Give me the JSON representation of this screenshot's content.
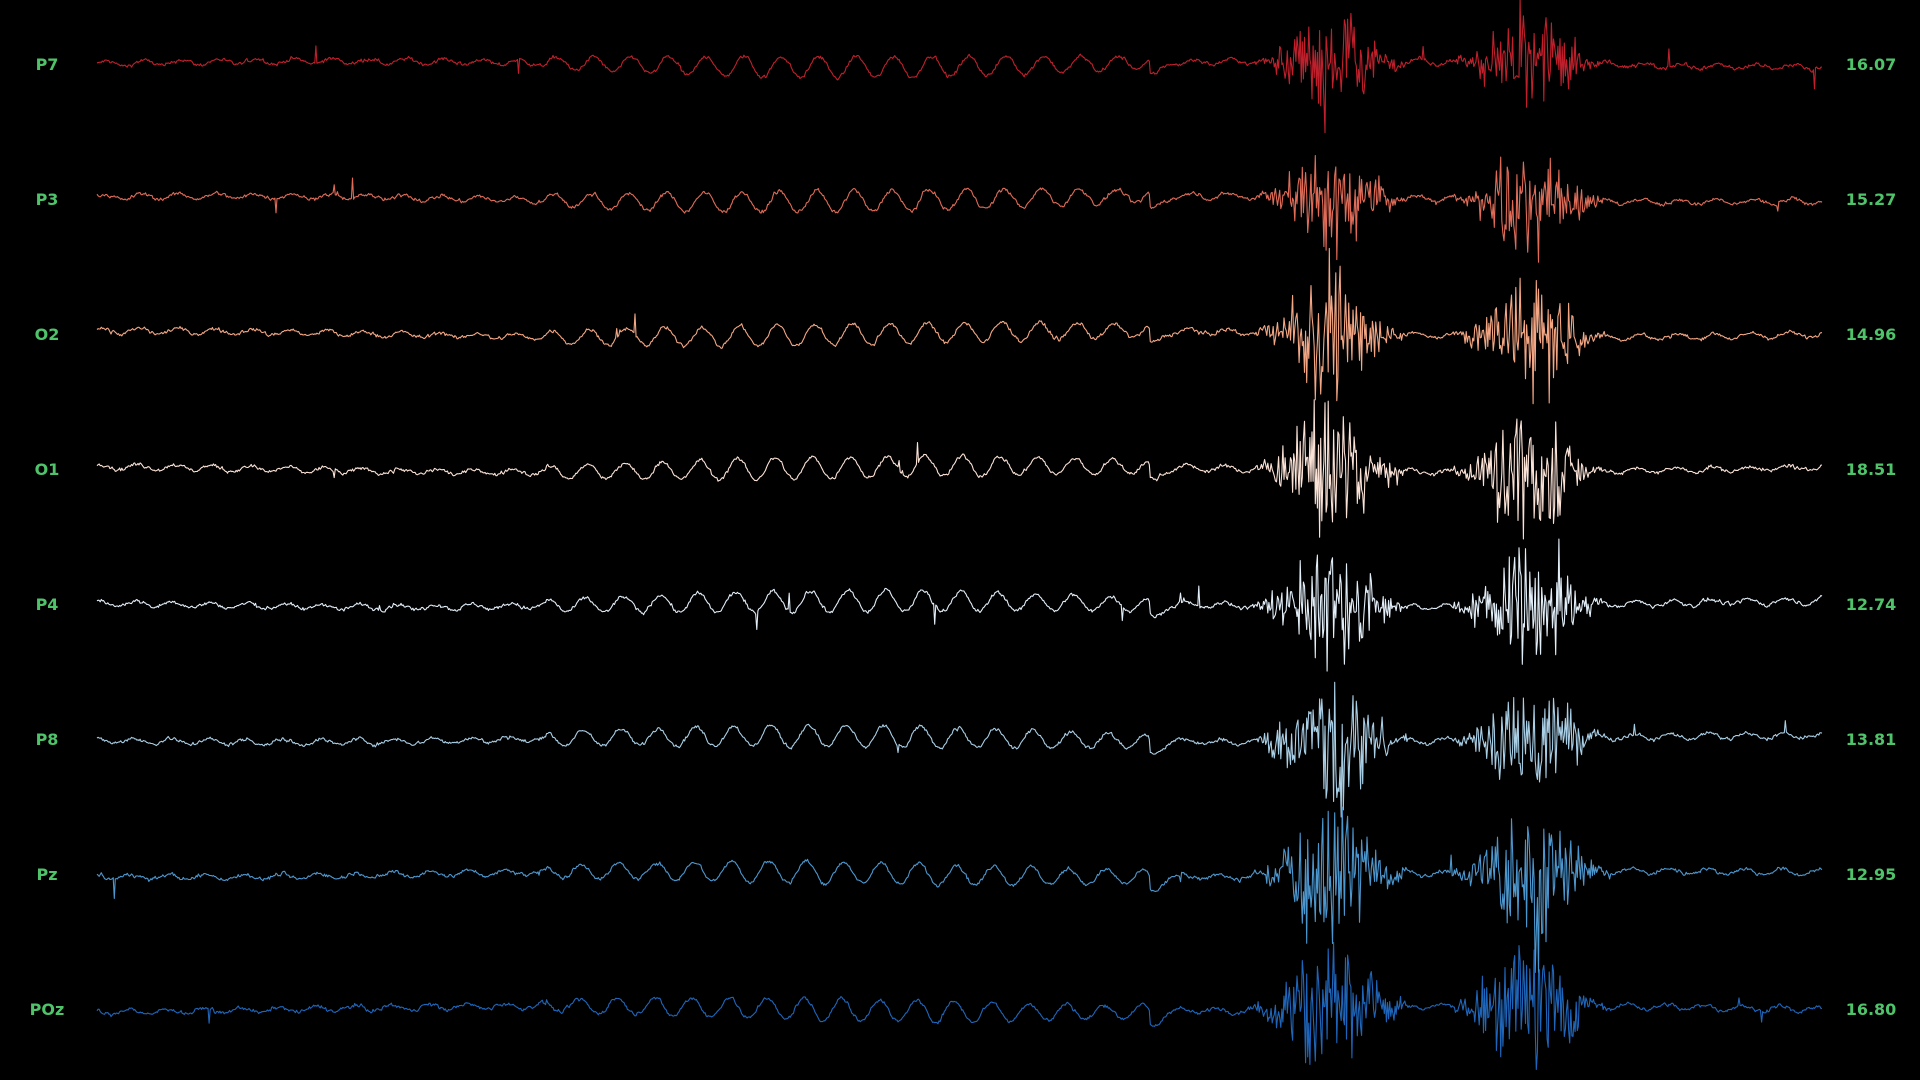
{
  "chart_data": {
    "type": "line",
    "label_color": "#4fc36a",
    "background": "#000000",
    "burst_regions": [
      "artifact-burst-1",
      "artifact-burst-2"
    ],
    "channels": [
      {
        "name": "P7",
        "value": "16.07",
        "color": "#c0202c"
      },
      {
        "name": "P3",
        "value": "15.27",
        "color": "#e06c58"
      },
      {
        "name": "O2",
        "value": "14.96",
        "color": "#f4a784"
      },
      {
        "name": "O1",
        "value": "18.51",
        "color": "#fbe2d6"
      },
      {
        "name": "P4",
        "value": "12.74",
        "color": "#e2eef8"
      },
      {
        "name": "P8",
        "value": "13.81",
        "color": "#a9cfe6"
      },
      {
        "name": "Pz",
        "value": "12.95",
        "color": "#4d97cf"
      },
      {
        "name": "POz",
        "value": "16.80",
        "color": "#1f66bb"
      }
    ]
  }
}
